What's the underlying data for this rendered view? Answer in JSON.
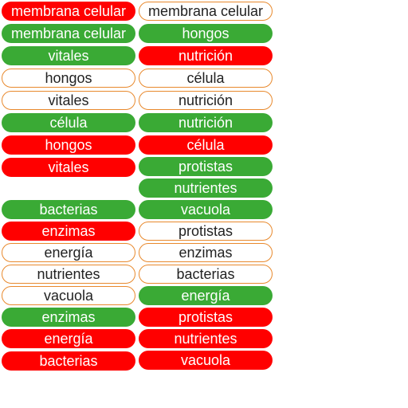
{
  "colors": {
    "red": "#ff0000",
    "green": "#3aaa35",
    "white_border": "#e8892d"
  },
  "left": [
    {
      "label": "membrana celular",
      "color": "red"
    },
    {
      "label": "membrana celular",
      "color": "green"
    },
    {
      "label": "vitales",
      "color": "green"
    },
    {
      "label": "hongos",
      "color": "white"
    },
    {
      "label": "vitales",
      "color": "white"
    },
    {
      "label": "célula",
      "color": "green"
    },
    {
      "label": "hongos",
      "color": "red"
    },
    {
      "label": "vitales",
      "color": "red"
    },
    {
      "label": "bacterias",
      "color": "green"
    },
    {
      "label": "enzimas",
      "color": "red"
    },
    {
      "label": "energía",
      "color": "white"
    },
    {
      "label": "nutrientes",
      "color": "white"
    },
    {
      "label": "vacuola",
      "color": "white"
    },
    {
      "label": "enzimas",
      "color": "green"
    },
    {
      "label": "energía",
      "color": "red"
    },
    {
      "label": "bacterias",
      "color": "red"
    }
  ],
  "right": [
    {
      "label": "membrana celular",
      "color": "white"
    },
    {
      "label": "hongos",
      "color": "green"
    },
    {
      "label": "nutrición",
      "color": "red"
    },
    {
      "label": "célula",
      "color": "white"
    },
    {
      "label": "nutrición",
      "color": "white"
    },
    {
      "label": "nutrición",
      "color": "green"
    },
    {
      "label": "célula",
      "color": "red"
    },
    {
      "label": "protistas",
      "color": "green"
    },
    {
      "label": "nutrientes",
      "color": "green"
    },
    {
      "label": "vacuola",
      "color": "green"
    },
    {
      "label": "protistas",
      "color": "white"
    },
    {
      "label": "enzimas",
      "color": "white"
    },
    {
      "label": "bacterias",
      "color": "white"
    },
    {
      "label": "energía",
      "color": "green"
    },
    {
      "label": "protistas",
      "color": "red"
    },
    {
      "label": "nutrientes",
      "color": "red"
    },
    {
      "label": "vacuola",
      "color": "red"
    }
  ]
}
